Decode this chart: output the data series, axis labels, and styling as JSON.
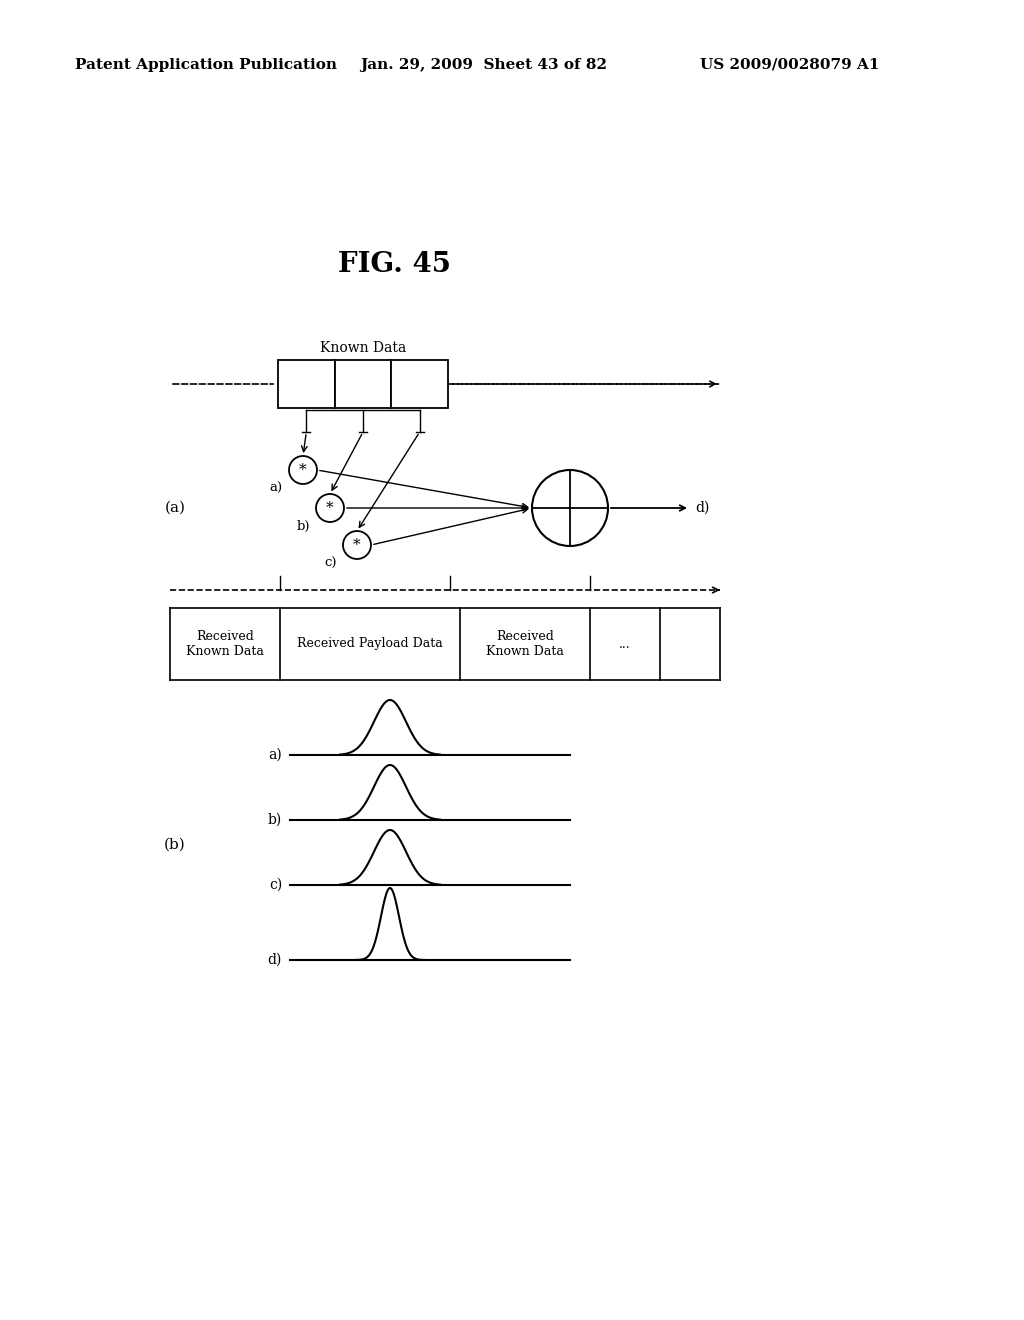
{
  "bg_color": "#ffffff",
  "header_left": "Patent Application Publication",
  "header_date": "Jan. 29, 2009  Sheet 43 of 82",
  "header_right": "US 2009/0028079 A1",
  "fig_title": "FIG. 45",
  "label_a": "(a)",
  "label_b": "(b)",
  "known_data_label": "Known Data",
  "cell_labels": [
    "Received\nKnown Data",
    "Received Payload Data",
    "Received\nKnown Data",
    "..."
  ],
  "signal_labels": [
    "a)",
    "b)",
    "c)",
    "d)"
  ]
}
